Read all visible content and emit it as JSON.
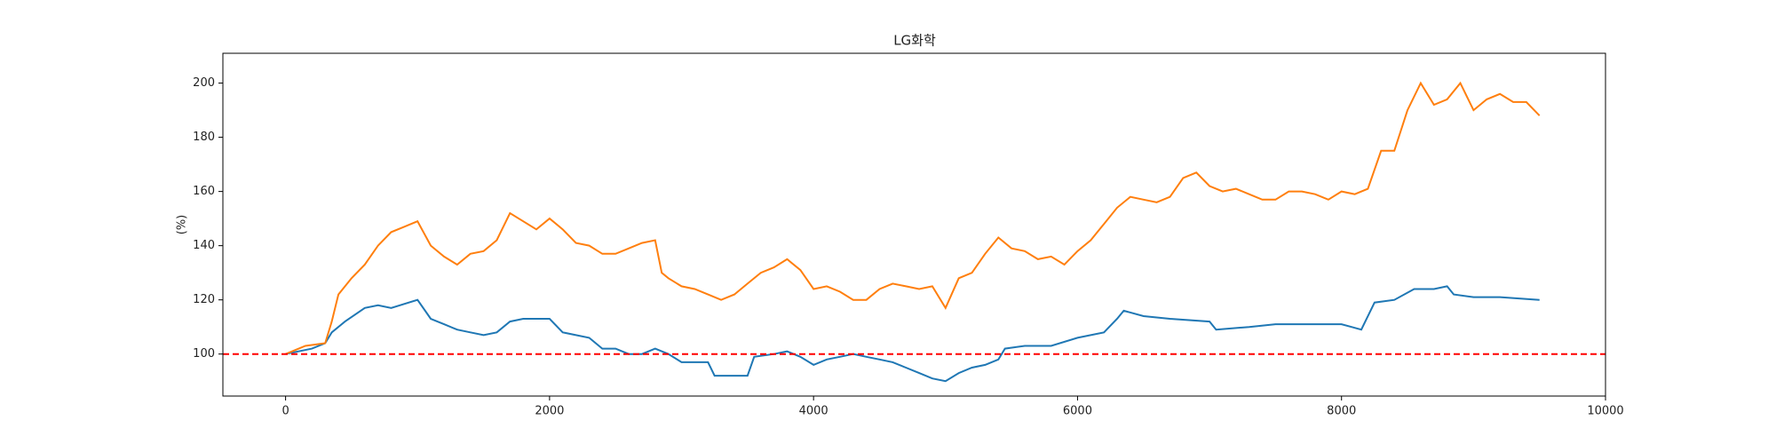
{
  "chart_data": {
    "type": "line",
    "title": "LG화학",
    "y_label": "(%)",
    "xlim": [
      -475,
      10000
    ],
    "ylim": [
      84.5,
      211
    ],
    "xticks": [
      0,
      2000,
      4000,
      6000,
      8000,
      10000
    ],
    "yticks": [
      100,
      120,
      140,
      160,
      180,
      200
    ],
    "hline": {
      "value": 100,
      "color": "#ff0000",
      "dash": true
    },
    "series": [
      {
        "color": "#1f77b4",
        "x": [
          0,
          200,
          300,
          350,
          450,
          600,
          700,
          800,
          1000,
          1100,
          1200,
          1300,
          1400,
          1500,
          1600,
          1700,
          1800,
          2000,
          2100,
          2300,
          2400,
          2500,
          2600,
          2700,
          2800,
          2900,
          3000,
          3200,
          3250,
          3500,
          3550,
          3700,
          3800,
          3900,
          4000,
          4100,
          4200,
          4300,
          4400,
          4500,
          4600,
          4700,
          4800,
          4900,
          5000,
          5100,
          5200,
          5300,
          5400,
          5450,
          5600,
          5800,
          6000,
          6200,
          6300,
          6350,
          6500,
          6700,
          7000,
          7050,
          7300,
          7500,
          8000,
          8150,
          8250,
          8400,
          8550,
          8700,
          8800,
          8850,
          9000,
          9200,
          9500
        ],
        "values": [
          100,
          102,
          104,
          108,
          112,
          117,
          118,
          117,
          120,
          113,
          111,
          109,
          108,
          107,
          108,
          112,
          113,
          113,
          108,
          106,
          102,
          102,
          100,
          100,
          102,
          100,
          97,
          97,
          92,
          92,
          99,
          100,
          101,
          99,
          96,
          98,
          99,
          100,
          99,
          98,
          97,
          95,
          93,
          91,
          90,
          93,
          95,
          96,
          98,
          102,
          103,
          103,
          106,
          108,
          113,
          116,
          114,
          113,
          112,
          109,
          110,
          111,
          111,
          109,
          119,
          120,
          124,
          124,
          125,
          122,
          121,
          121,
          120
        ]
      },
      {
        "color": "#ff7f0e",
        "x": [
          0,
          150,
          300,
          350,
          400,
          500,
          600,
          700,
          800,
          900,
          1000,
          1100,
          1200,
          1300,
          1400,
          1500,
          1600,
          1700,
          1800,
          1900,
          2000,
          2100,
          2200,
          2300,
          2400,
          2500,
          2600,
          2700,
          2800,
          2850,
          2900,
          3000,
          3100,
          3200,
          3300,
          3400,
          3500,
          3600,
          3700,
          3800,
          3900,
          4000,
          4100,
          4200,
          4300,
          4400,
          4500,
          4600,
          4700,
          4800,
          4900,
          5000,
          5100,
          5200,
          5300,
          5400,
          5500,
          5600,
          5700,
          5800,
          5900,
          6000,
          6100,
          6200,
          6300,
          6400,
          6500,
          6600,
          6700,
          6800,
          6900,
          7000,
          7100,
          7200,
          7300,
          7400,
          7500,
          7600,
          7700,
          7800,
          7900,
          8000,
          8100,
          8200,
          8300,
          8400,
          8500,
          8600,
          8700,
          8800,
          8900,
          9000,
          9100,
          9200,
          9300,
          9400,
          9500
        ],
        "values": [
          100,
          103,
          104,
          112,
          122,
          128,
          133,
          140,
          145,
          147,
          149,
          140,
          136,
          133,
          137,
          138,
          142,
          152,
          149,
          146,
          150,
          146,
          141,
          140,
          137,
          137,
          139,
          141,
          142,
          130,
          128,
          125,
          124,
          122,
          120,
          122,
          126,
          130,
          132,
          135,
          131,
          124,
          125,
          123,
          120,
          120,
          124,
          126,
          125,
          124,
          125,
          117,
          128,
          130,
          137,
          143,
          139,
          138,
          135,
          136,
          133,
          138,
          142,
          148,
          154,
          158,
          157,
          156,
          158,
          165,
          167,
          162,
          160,
          161,
          159,
          157,
          157,
          160,
          160,
          159,
          157,
          160,
          159,
          161,
          175,
          175,
          190,
          200,
          192,
          194,
          200,
          190,
          194,
          196,
          193,
          193,
          188
        ]
      }
    ]
  }
}
